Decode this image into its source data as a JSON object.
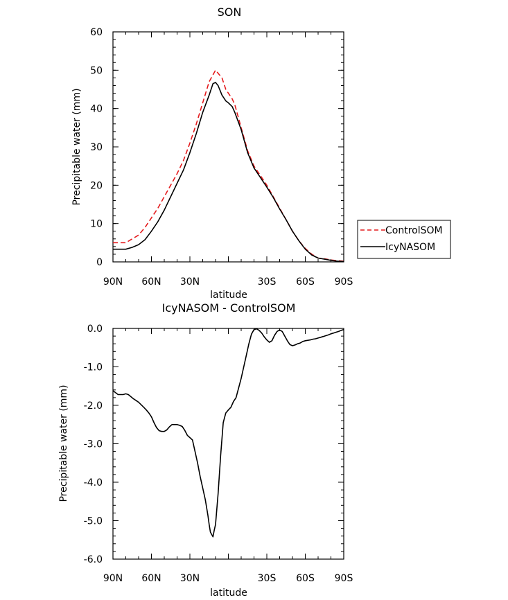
{
  "chart_data": [
    {
      "type": "line",
      "title": "SON",
      "xlabel": "latitude",
      "ylabel": "Precipitable water (mm)",
      "xlim": [
        90,
        -90
      ],
      "ylim": [
        0,
        60
      ],
      "xticks": [
        90,
        60,
        30,
        0,
        -30,
        -60,
        -90
      ],
      "xtick_labels": [
        "90N",
        "60N",
        "30N",
        "",
        "30S",
        "60S",
        "90S"
      ],
      "yticks": [
        0,
        10,
        20,
        30,
        40,
        50,
        60
      ],
      "ytick_labels": [
        "0",
        "10",
        "20",
        "30",
        "40",
        "50",
        "60"
      ],
      "legend": "outside-right",
      "series": [
        {
          "name": "ControlSOM",
          "color": "#e41a1c",
          "dash": "dashed",
          "x": [
            90,
            85,
            80,
            75,
            70,
            65,
            60,
            55,
            50,
            45,
            40,
            35,
            30,
            25,
            20,
            15,
            10,
            5,
            2,
            0,
            -3,
            -5,
            -10,
            -15,
            -20,
            -25,
            -30,
            -35,
            -40,
            -45,
            -50,
            -55,
            -60,
            -65,
            -70,
            -75,
            -80,
            -85,
            -90
          ],
          "y": [
            5.0,
            5.0,
            5.0,
            6.0,
            7.0,
            9.0,
            11.5,
            14.0,
            17.0,
            20.0,
            23.0,
            26.5,
            31.0,
            36.0,
            41.5,
            47.0,
            50.0,
            48.0,
            45.0,
            44.0,
            42.5,
            41.0,
            35.0,
            29.0,
            25.0,
            22.5,
            20.0,
            17.0,
            14.0,
            11.0,
            8.0,
            5.5,
            3.5,
            2.0,
            1.0,
            0.8,
            0.5,
            0.3,
            0.2
          ]
        },
        {
          "name": "IcyNASOM",
          "color": "#000000",
          "dash": "solid",
          "x": [
            90,
            85,
            80,
            75,
            70,
            65,
            60,
            55,
            50,
            45,
            40,
            35,
            30,
            25,
            20,
            15,
            12,
            10,
            8,
            5,
            2,
            0,
            -3,
            -5,
            -10,
            -15,
            -20,
            -25,
            -30,
            -35,
            -40,
            -45,
            -50,
            -55,
            -60,
            -65,
            -70,
            -75,
            -80,
            -85,
            -90
          ],
          "y": [
            3.3,
            3.3,
            3.3,
            3.8,
            4.5,
            5.8,
            8.0,
            10.5,
            13.5,
            17.0,
            20.5,
            24.0,
            28.5,
            33.5,
            39.0,
            43.5,
            46.5,
            46.8,
            46.0,
            43.5,
            42.0,
            41.5,
            40.5,
            39.0,
            34.5,
            28.5,
            24.5,
            22.0,
            19.5,
            16.8,
            13.8,
            11.0,
            8.0,
            5.5,
            3.3,
            1.8,
            1.0,
            0.7,
            0.4,
            0.2,
            0.1
          ]
        }
      ]
    },
    {
      "type": "line",
      "title": "IcyNASOM - ControlSOM",
      "xlabel": "latitude",
      "ylabel": "Precipitable water (mm)",
      "xlim": [
        90,
        -90
      ],
      "ylim": [
        -6.0,
        0.0
      ],
      "xticks": [
        90,
        60,
        30,
        0,
        -30,
        -60,
        -90
      ],
      "xtick_labels": [
        "90N",
        "60N",
        "30N",
        "",
        "30S",
        "60S",
        "90S"
      ],
      "yticks": [
        0,
        -1,
        -2,
        -3,
        -4,
        -5,
        -6
      ],
      "ytick_labels": [
        "0.0",
        "-1.0",
        "-2.0",
        "-3.0",
        "-4.0",
        "-5.0",
        "-6.0"
      ],
      "series": [
        {
          "color": "#000000",
          "dash": "solid",
          "x": [
            90,
            86,
            82,
            80,
            78,
            74,
            70,
            66,
            64,
            62,
            60,
            58,
            56,
            54,
            52,
            50,
            48,
            46,
            44,
            40,
            38,
            36,
            34,
            32,
            30,
            28,
            26,
            24,
            22,
            20,
            18,
            16,
            15,
            14,
            12,
            11,
            10,
            8,
            6,
            4,
            2,
            0,
            -2,
            -4,
            -6,
            -8,
            -10,
            -12,
            -14,
            -16,
            -18,
            -20,
            -22,
            -24,
            -26,
            -28,
            -30,
            -32,
            -34,
            -36,
            -38,
            -40,
            -42,
            -44,
            -46,
            -48,
            -50,
            -52,
            -54,
            -56,
            -58,
            -60,
            -62,
            -64,
            -66,
            -68,
            -70,
            -72,
            -74,
            -76,
            -78,
            -80,
            -82,
            -84,
            -86,
            -88,
            -90
          ],
          "y": [
            -1.62,
            -1.72,
            -1.72,
            -1.7,
            -1.72,
            -1.83,
            -1.92,
            -2.05,
            -2.12,
            -2.2,
            -2.3,
            -2.45,
            -2.58,
            -2.66,
            -2.68,
            -2.68,
            -2.64,
            -2.56,
            -2.5,
            -2.5,
            -2.52,
            -2.55,
            -2.65,
            -2.78,
            -2.84,
            -2.9,
            -3.2,
            -3.5,
            -3.85,
            -4.15,
            -4.45,
            -4.85,
            -5.1,
            -5.3,
            -5.42,
            -5.25,
            -5.1,
            -4.3,
            -3.3,
            -2.45,
            -2.2,
            -2.12,
            -2.05,
            -1.9,
            -1.8,
            -1.55,
            -1.3,
            -1.0,
            -0.7,
            -0.4,
            -0.15,
            -0.03,
            -0.01,
            -0.05,
            -0.12,
            -0.22,
            -0.3,
            -0.36,
            -0.32,
            -0.18,
            -0.08,
            -0.04,
            -0.08,
            -0.2,
            -0.32,
            -0.42,
            -0.45,
            -0.43,
            -0.4,
            -0.38,
            -0.34,
            -0.32,
            -0.31,
            -0.3,
            -0.28,
            -0.27,
            -0.25,
            -0.23,
            -0.21,
            -0.19,
            -0.17,
            -0.14,
            -0.12,
            -0.1,
            -0.08,
            -0.05,
            -0.03
          ]
        }
      ]
    }
  ]
}
